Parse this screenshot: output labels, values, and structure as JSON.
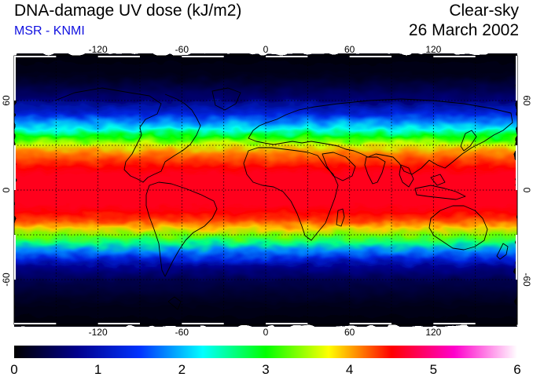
{
  "header": {
    "title": "DNA-damage UV dose (kJ/m2)",
    "source": "MSR - KNMI",
    "condition": "Clear-sky",
    "date": "26 March 2002"
  },
  "map": {
    "projection": "equirectangular",
    "lon_range": [
      -180,
      180
    ],
    "lat_range": [
      -90,
      90
    ],
    "lon_ticks": [
      "-120",
      "-60",
      "0",
      "60",
      "120"
    ],
    "lat_ticks": [
      "60",
      "0",
      "-60"
    ],
    "graticule_step_deg": 30,
    "graticule_style": "dotted",
    "background": "#000000",
    "coastline_color": "#000000"
  },
  "chart_data": {
    "type": "heatmap",
    "quantity": "DNA-damage UV dose",
    "unit": "kJ/m2",
    "zonal_profile_lat_deg": [
      90,
      75,
      60,
      50,
      45,
      40,
      35,
      30,
      25,
      20,
      15,
      10,
      5,
      0,
      -5,
      -10,
      -15,
      -20,
      -25,
      -30,
      -35,
      -40,
      -45,
      -50,
      -60,
      -75,
      -90
    ],
    "zonal_profile_dose": [
      0.05,
      0.15,
      0.6,
      1.3,
      1.8,
      2.3,
      3.0,
      3.6,
      4.1,
      4.3,
      4.5,
      4.6,
      4.6,
      4.6,
      4.6,
      4.6,
      4.5,
      4.3,
      3.9,
      3.3,
      2.6,
      1.8,
      1.3,
      0.8,
      0.4,
      0.15,
      0.05
    ]
  },
  "colorbar": {
    "min": 0,
    "max": 6,
    "tick_labels": [
      "0",
      "1",
      "2",
      "3",
      "4",
      "5",
      "6"
    ],
    "stops": [
      "#000000",
      "#00008c",
      "#0033ff",
      "#00ffff",
      "#00ff00",
      "#ffff00",
      "#ff0000",
      "#ff00cc",
      "#ffffff"
    ]
  }
}
